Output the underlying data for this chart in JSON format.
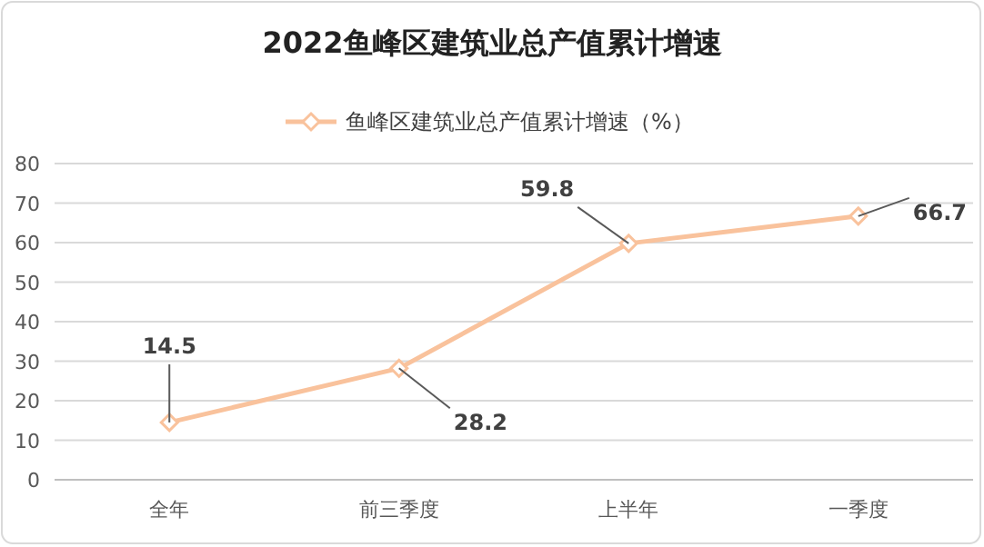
{
  "chart_data": {
    "type": "line",
    "title": "2022鱼峰区建筑业总产值累计增速",
    "categories": [
      "全年",
      "前三季度",
      "上半年",
      "一季度"
    ],
    "series": [
      {
        "name": "鱼峰区建筑业总产值累计增速（%）",
        "color": "#f9c29c",
        "values": [
          14.5,
          28.2,
          59.8,
          66.7
        ]
      }
    ],
    "ylim": [
      0,
      80
    ],
    "yticks": [
      0,
      10,
      20,
      30,
      40,
      50,
      60,
      70,
      80
    ],
    "grid": "y",
    "legend": "top",
    "marker": "diamond",
    "line_style": "solid",
    "data_labels": true
  }
}
